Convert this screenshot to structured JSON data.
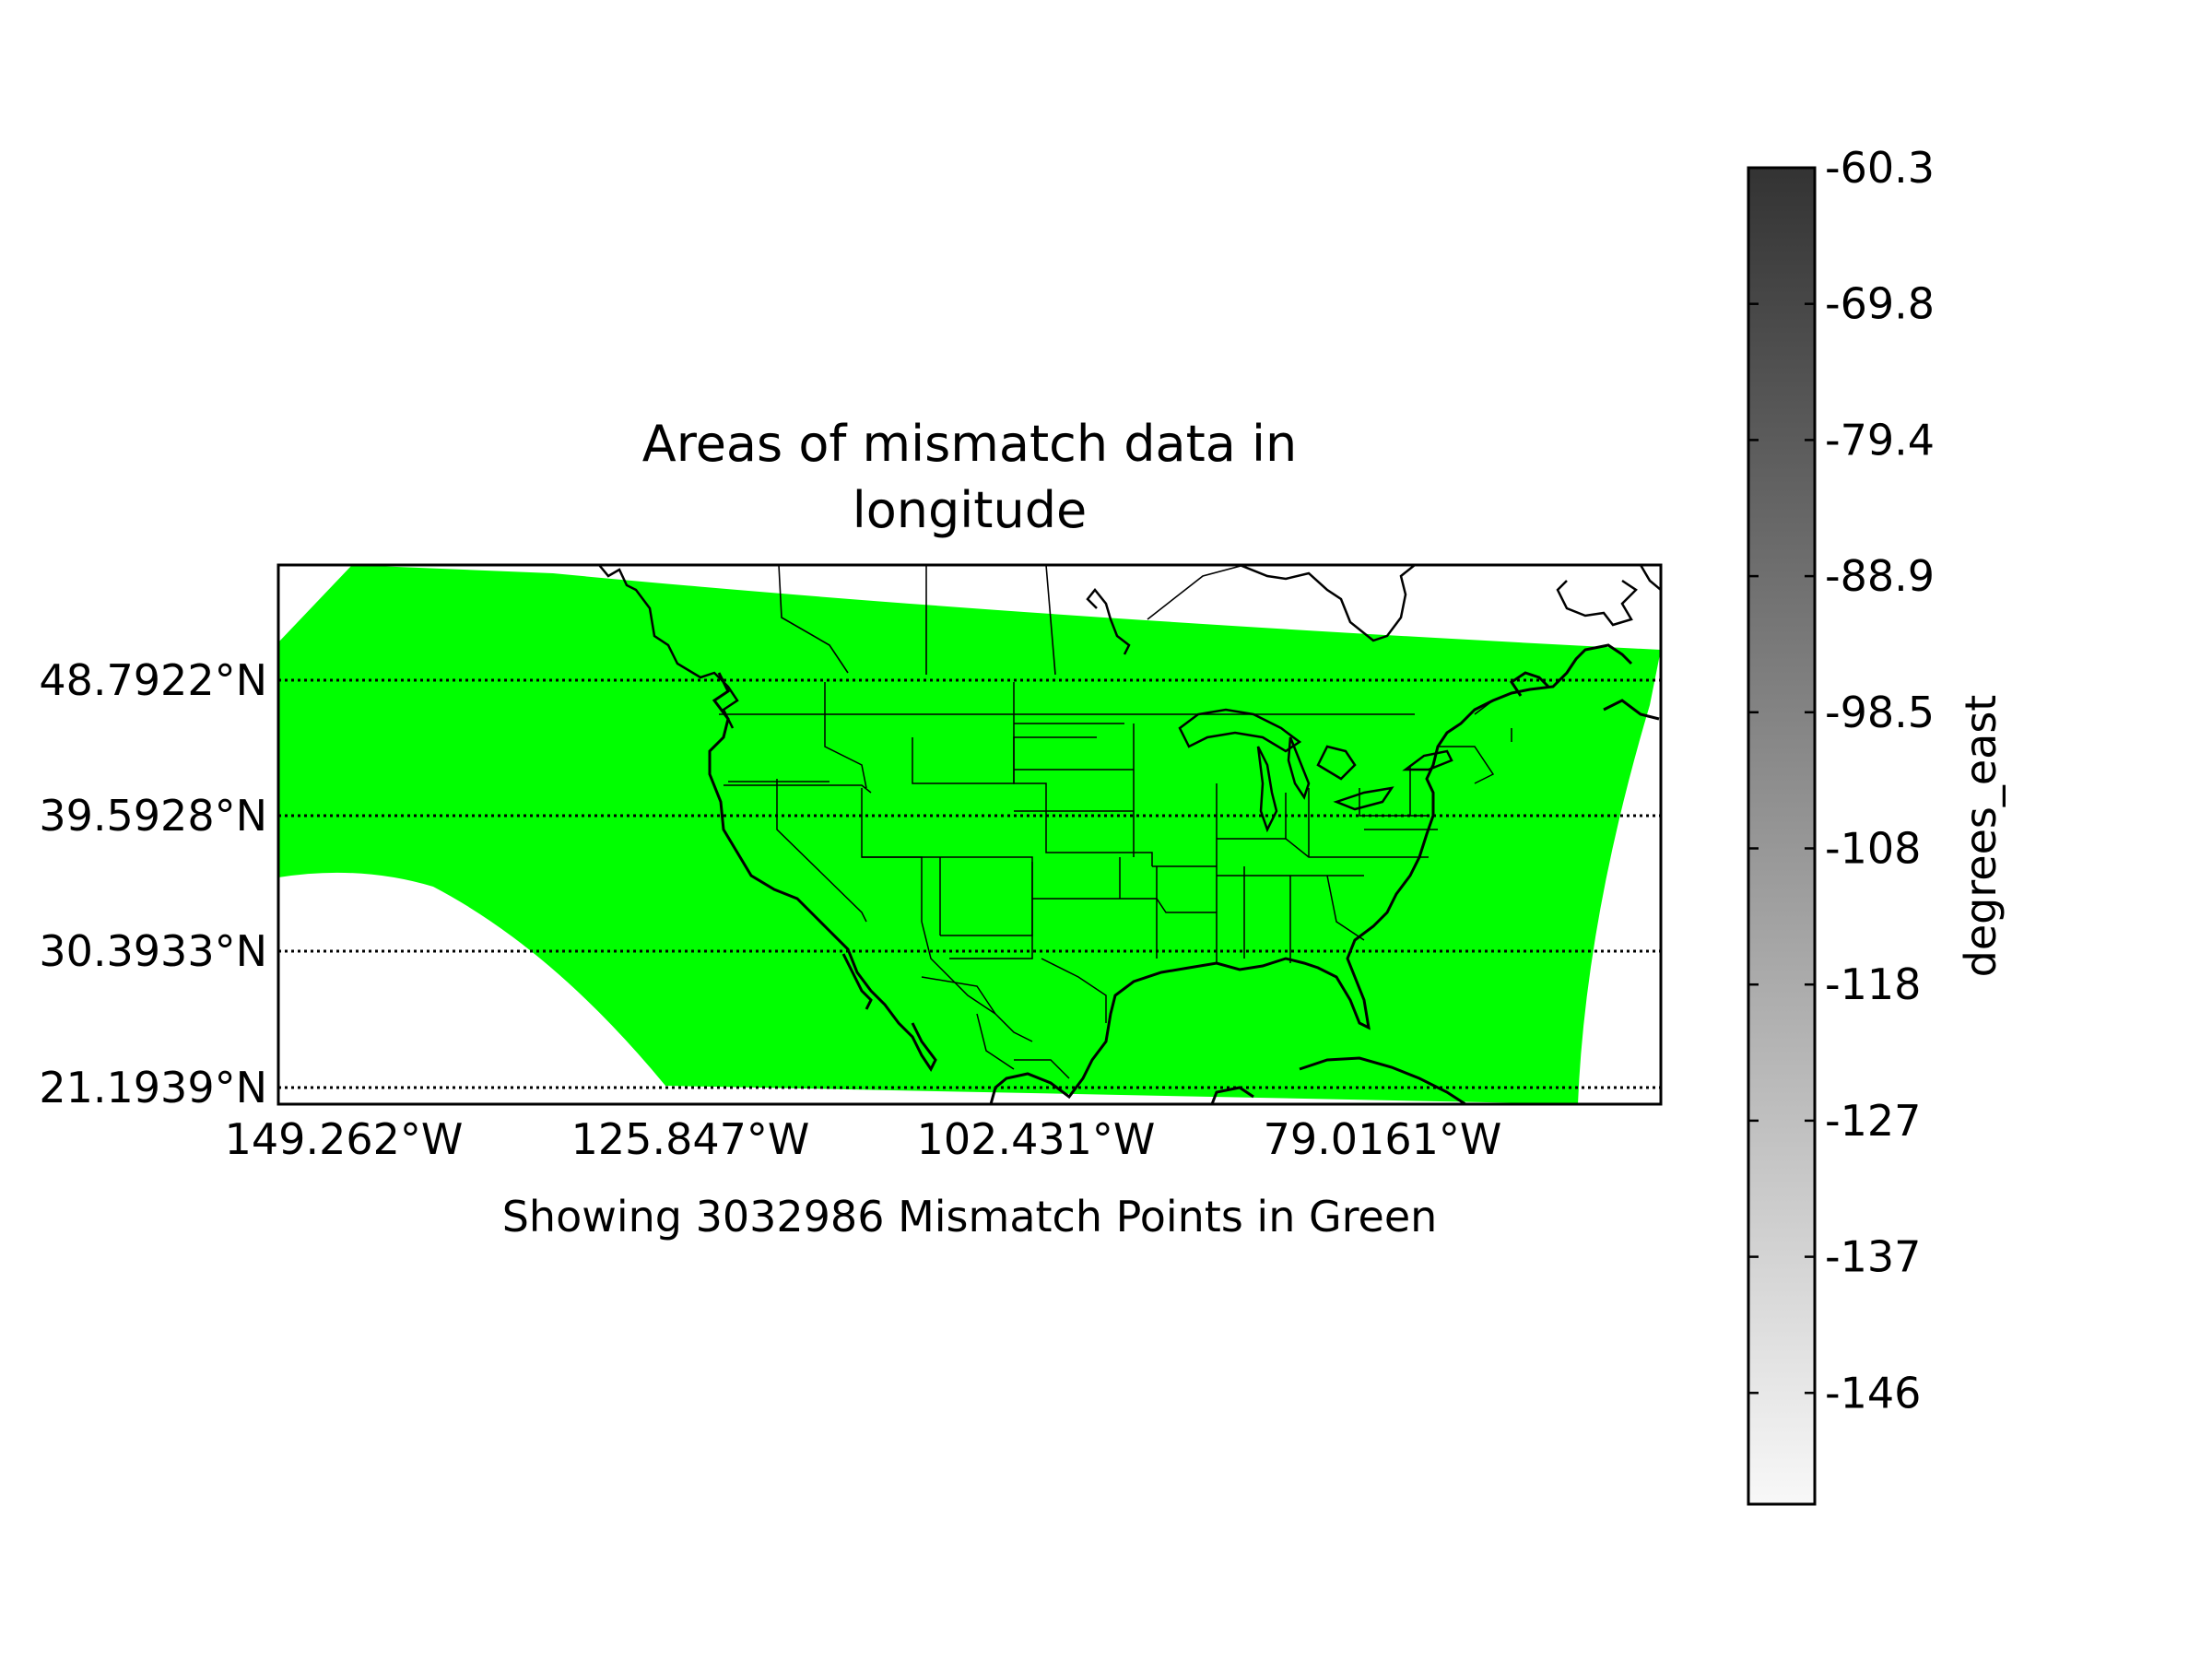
{
  "figure": {
    "title_line1": "Areas of mismatch data in",
    "title_line2": "longitude",
    "caption": "Showing 3032986 Mismatch Points in Green"
  },
  "map": {
    "lat_labels": [
      "48.7922°N",
      "39.5928°N",
      "30.3933°N",
      "21.1939°N"
    ],
    "lon_labels": [
      "149.262°W",
      "125.847°W",
      "102.431°W",
      "79.0161°W"
    ],
    "mismatch_color": "#00ff00",
    "coastline_color": "#000000",
    "gridline_style": "dotted"
  },
  "colorbar": {
    "label": "degrees_east",
    "tick_labels": [
      "-60.3",
      "-69.8",
      "-79.4",
      "-88.9",
      "-98.5",
      "-108",
      "-118",
      "-127",
      "-137",
      "-146"
    ],
    "color_top": "#333333",
    "color_bottom": "#f8f8f8"
  }
}
